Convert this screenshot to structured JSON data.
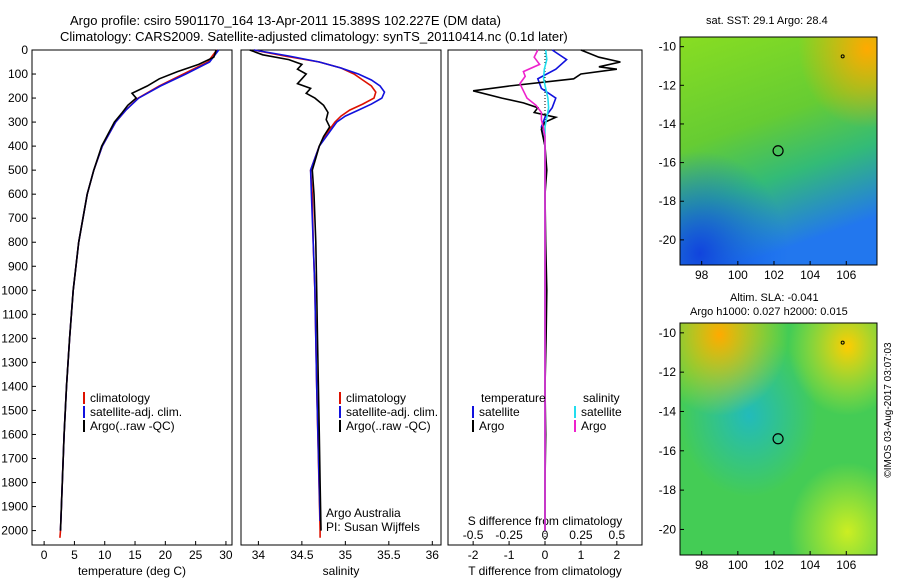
{
  "header": {
    "title_line1": "Argo profile: csiro 5901170_164 13-Apr-2011 15.389S 102.227E (DM data)",
    "title_line2": "Climatology: CARS2009. Satellite-adjusted climatology: synTS_20110414.nc (0.1d later)"
  },
  "maps": {
    "sst_title": "sat. SST: 29.1  Argo: 28.4",
    "sla_title_line1": "Altim. SLA: -0.041",
    "sla_title_line2": "Argo h1000: 0.027 h2000: 0.015",
    "credit": "©IMOS 03-Aug-2017 03:07:03",
    "x_ticks": [
      "98",
      "100",
      "102",
      "104",
      "106"
    ],
    "y_ticks": [
      "-10",
      "-12",
      "-14",
      "-16",
      "-18",
      "-20"
    ],
    "argo_position": {
      "lon": 102.227,
      "lat": -15.389
    },
    "colors": {
      "warm": "#ffcc00",
      "mid": "#44cc33",
      "cool": "#22aaff"
    }
  },
  "panel_text": {
    "argo_australia": "Argo Australia",
    "pi": "PI: Susan Wijffels"
  },
  "legends": {
    "temperature_panel": [
      "climatology",
      "satellite-adj. clim.",
      "Argo(..raw -QC)"
    ],
    "salinity_panel": [
      "climatology",
      "satellite-adj. clim.",
      "Argo(..raw -QC)"
    ],
    "diff_headers": [
      "temperature",
      "salinity"
    ],
    "diff_temperature": [
      "satellite",
      "Argo"
    ],
    "diff_salinity": [
      "satellite",
      "Argo"
    ]
  },
  "chart_data": [
    {
      "type": "line",
      "xlabel": "temperature (deg C)",
      "ylabel": "",
      "xlim": [
        -2,
        31
      ],
      "ylim": [
        2060,
        0
      ],
      "x_ticks": [
        0,
        5,
        10,
        15,
        20,
        25,
        30
      ],
      "y_ticks": [
        0,
        100,
        200,
        300,
        400,
        500,
        600,
        700,
        800,
        900,
        1000,
        1100,
        1200,
        1300,
        1400,
        1500,
        1600,
        1700,
        1800,
        1900,
        2000
      ],
      "colors": {
        "climatology": "#dd1100",
        "satellite-adj. clim.": "#1111dd",
        "Argo(..raw -QC)": "#000000"
      },
      "series": [
        {
          "name": "climatology",
          "depth": [
            0,
            50,
            100,
            150,
            200,
            250,
            300,
            400,
            500,
            600,
            800,
            1000,
            1200,
            1400,
            1600,
            1800,
            2000,
            2030
          ],
          "values": [
            28.5,
            27,
            23,
            19,
            15.5,
            13.5,
            11.8,
            9.6,
            8.2,
            7.1,
            5.7,
            4.8,
            4.2,
            3.7,
            3.3,
            3.0,
            2.7,
            2.6
          ]
        },
        {
          "name": "satellite-adj. clim.",
          "depth": [
            0,
            50,
            100,
            150,
            200,
            250,
            300,
            400,
            500,
            600,
            800,
            1000,
            1200,
            1400,
            1600,
            1800,
            2000
          ],
          "values": [
            28.8,
            27.3,
            23.4,
            19.2,
            15.6,
            13.5,
            11.8,
            9.6,
            8.2,
            7.1,
            5.7,
            4.8,
            4.2,
            3.7,
            3.3,
            3.0,
            2.7
          ]
        },
        {
          "name": "Argo(..raw -QC)",
          "depth": [
            0,
            30,
            60,
            90,
            120,
            150,
            180,
            200,
            230,
            260,
            300,
            400,
            500,
            600,
            800,
            1000,
            1200,
            1400,
            1600,
            1800,
            2000
          ],
          "values": [
            28.4,
            28.0,
            25.5,
            22.0,
            19.0,
            17.0,
            14.5,
            15.2,
            13.8,
            12.9,
            11.6,
            9.5,
            8.2,
            7.1,
            5.7,
            4.8,
            4.2,
            3.7,
            3.3,
            3.0,
            2.7
          ]
        }
      ]
    },
    {
      "type": "line",
      "xlabel": "salinity",
      "ylabel": "",
      "xlim": [
        33.8,
        36.1
      ],
      "ylim": [
        2060,
        0
      ],
      "x_ticks": [
        34,
        34.5,
        35,
        35.5,
        36
      ],
      "colors": {
        "climatology": "#dd1100",
        "satellite-adj. clim.": "#1111dd",
        "Argo(..raw -QC)": "#000000"
      },
      "series": [
        {
          "name": "climatology",
          "depth": [
            0,
            25,
            50,
            75,
            100,
            125,
            150,
            175,
            200,
            225,
            250,
            275,
            300,
            350,
            400,
            500,
            600,
            800,
            1000,
            1400,
            2000,
            2030
          ],
          "values": [
            33.95,
            34.3,
            34.7,
            34.95,
            35.1,
            35.2,
            35.3,
            35.35,
            35.33,
            35.2,
            35.05,
            34.95,
            34.88,
            34.78,
            34.7,
            34.6,
            34.62,
            34.63,
            34.65,
            34.67,
            34.71,
            34.71
          ]
        },
        {
          "name": "satellite-adj. clim.",
          "depth": [
            0,
            25,
            50,
            75,
            100,
            125,
            150,
            175,
            200,
            225,
            250,
            275,
            300,
            350,
            400,
            500,
            600,
            800,
            1000,
            1400,
            1960
          ],
          "values": [
            33.95,
            34.35,
            34.7,
            34.95,
            35.15,
            35.3,
            35.4,
            35.45,
            35.42,
            35.3,
            35.15,
            35.0,
            34.9,
            34.8,
            34.7,
            34.6,
            34.61,
            34.63,
            34.65,
            34.67,
            34.71
          ]
        },
        {
          "name": "Argo(..raw -QC)",
          "depth": [
            0,
            20,
            40,
            60,
            80,
            100,
            120,
            140,
            160,
            180,
            200,
            230,
            260,
            290,
            320,
            360,
            400,
            500,
            600,
            700,
            800,
            1000,
            1200,
            1400,
            1600,
            1800,
            2000
          ],
          "values": [
            33.9,
            34.05,
            34.35,
            34.5,
            34.45,
            34.55,
            34.5,
            34.45,
            34.6,
            34.55,
            34.65,
            34.75,
            34.8,
            34.78,
            34.82,
            34.75,
            34.7,
            34.62,
            34.64,
            34.65,
            34.66,
            34.67,
            34.68,
            34.69,
            34.7,
            34.71,
            34.72
          ]
        }
      ]
    },
    {
      "type": "line",
      "xlabel": "T difference from climatology",
      "xlabel_top": "S difference from climatology",
      "ylabel": "",
      "xlim": [
        -2.7,
        2.7
      ],
      "ylim": [
        2060,
        0
      ],
      "x_ticks": [
        -2,
        -1,
        0,
        1,
        2
      ],
      "x_ticks_top": [
        "-0.5",
        "-0.25",
        "0",
        "0.25",
        "0.5"
      ],
      "colors": {
        "temperature satellite": "#1111dd",
        "temperature Argo": "#000000",
        "salinity satellite": "#22ddee",
        "salinity Argo": "#ee22cc"
      },
      "series": [
        {
          "name": "temperature satellite",
          "depth": [
            0,
            40,
            80,
            120,
            160,
            200,
            240,
            280,
            320,
            400,
            500,
            600,
            800,
            1000,
            2000
          ],
          "values": [
            0.2,
            0.6,
            0.3,
            -0.2,
            -0.1,
            0.3,
            0.2,
            0.0,
            -0.1,
            0.0,
            0.0,
            0.0,
            0.0,
            0.0,
            0.0
          ]
        },
        {
          "name": "temperature Argo",
          "depth": [
            0,
            30,
            50,
            70,
            80,
            100,
            120,
            150,
            170,
            200,
            220,
            240,
            260,
            280,
            300,
            330,
            400,
            500,
            600,
            800,
            1000,
            1200,
            1400,
            1600,
            1800,
            2000
          ],
          "values": [
            1.0,
            1.5,
            2.1,
            1.5,
            2.0,
            1.0,
            0.8,
            -1.0,
            -2.0,
            -1.2,
            -0.6,
            -0.2,
            -0.3,
            0.3,
            0.0,
            -0.1,
            0.0,
            0.05,
            0.0,
            0.02,
            0.05,
            0.03,
            0.0,
            0.02,
            0.0,
            0.0
          ]
        },
        {
          "name": "salinity satellite",
          "depth": [
            0,
            40,
            80,
            120,
            160,
            200,
            240,
            280,
            320,
            400,
            500,
            700,
            1000,
            1400,
            2000
          ],
          "values": [
            0.02,
            0.05,
            -0.02,
            -0.04,
            0.02,
            0.08,
            0.1,
            0.05,
            0.0,
            0.0,
            0.0,
            0.0,
            0.0,
            0.0,
            0.0
          ]
        },
        {
          "name": "salinity Argo",
          "depth": [
            0,
            30,
            60,
            90,
            110,
            140,
            170,
            200,
            230,
            260,
            290,
            320,
            360,
            400,
            500,
            700,
            1000,
            1400,
            2000
          ],
          "values": [
            -0.2,
            -0.3,
            -0.15,
            -0.6,
            -0.55,
            -0.7,
            -0.6,
            -0.5,
            -0.25,
            -0.1,
            -0.1,
            -0.05,
            0.0,
            0.0,
            0.0,
            0.0,
            0.0,
            0.0,
            0.0
          ]
        }
      ]
    }
  ]
}
